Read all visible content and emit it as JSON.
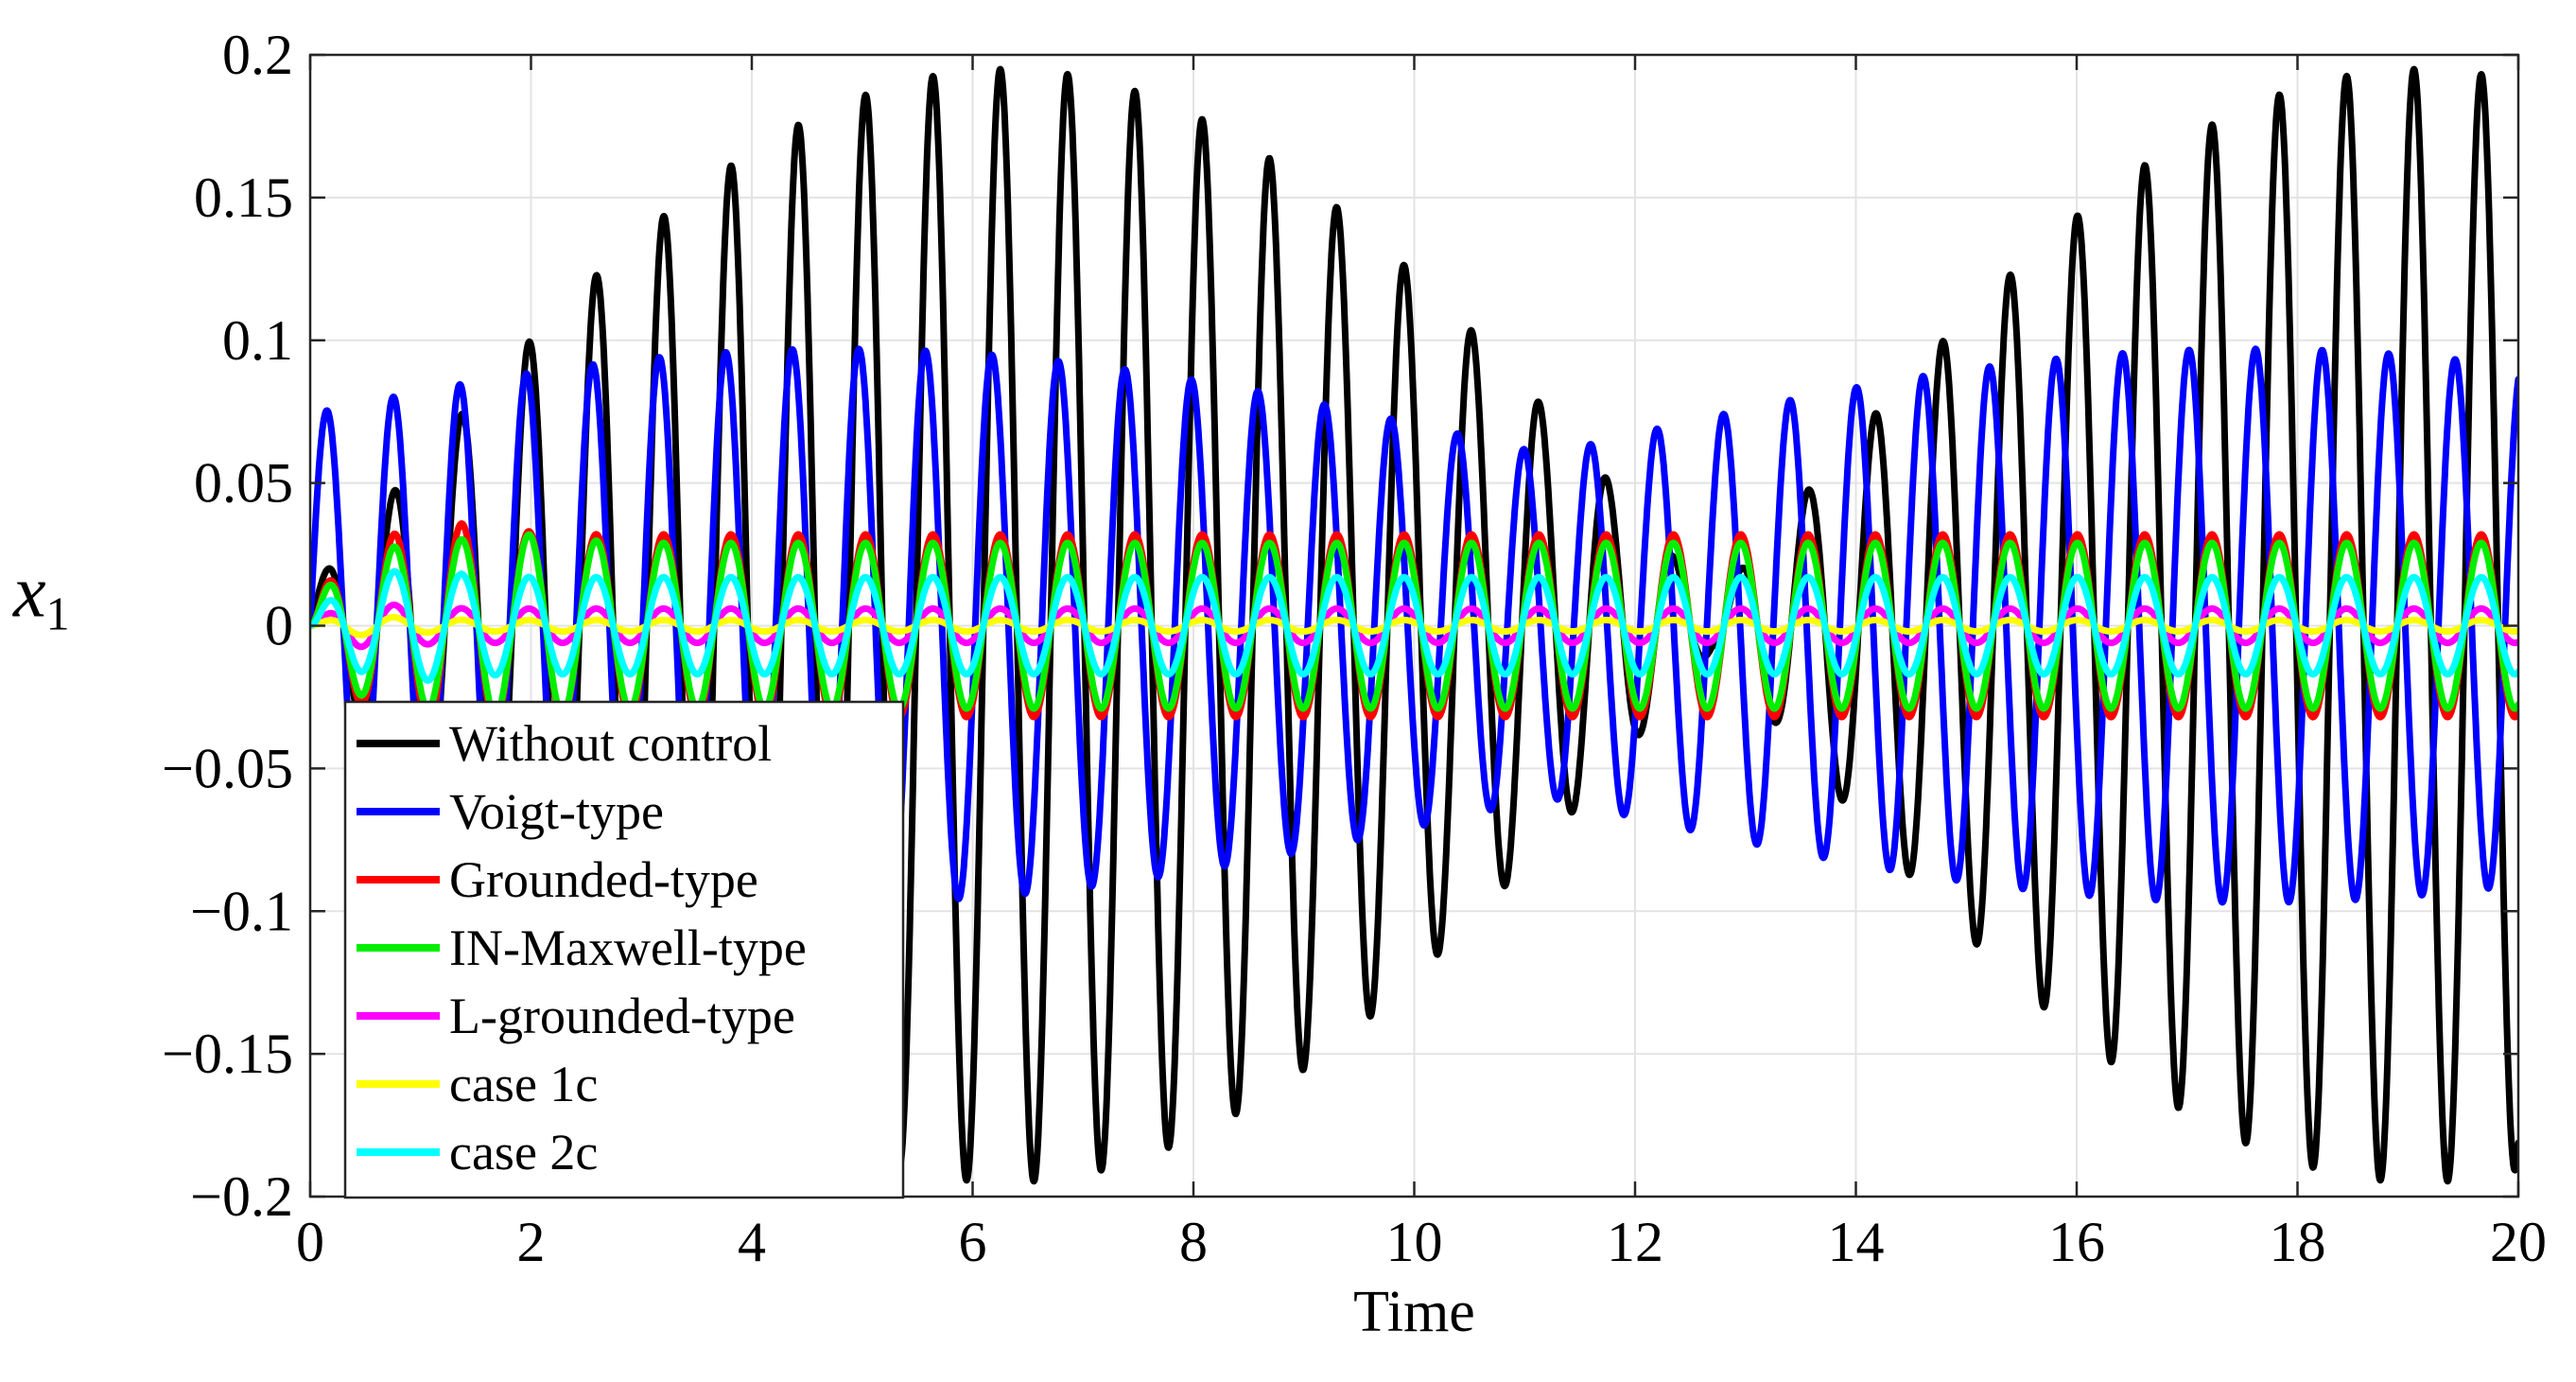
{
  "chart_data": {
    "type": "line",
    "title": "",
    "xlabel": "Time",
    "ylabel_main": "x",
    "ylabel_sub": "1",
    "xlim": [
      0,
      20
    ],
    "ylim": [
      -0.2,
      0.2
    ],
    "xticks": [
      0,
      2,
      4,
      6,
      8,
      10,
      12,
      14,
      16,
      18,
      20
    ],
    "yticks": [
      0.2,
      0.15,
      0.1,
      0.05,
      0,
      -0.05,
      -0.1,
      -0.15,
      -0.2
    ],
    "xtick_labels": [
      "0",
      "2",
      "4",
      "6",
      "8",
      "10",
      "12",
      "14",
      "16",
      "18",
      "20"
    ],
    "ytick_labels": [
      "0.2",
      "0.15",
      "0.1",
      "0.05",
      "0",
      "−0.05",
      "−0.1",
      "−0.15",
      "−0.2"
    ],
    "grid": true,
    "legend_position": "bottom-left",
    "series": [
      {
        "name": "Without control",
        "color": "#000000",
        "model": "beating",
        "amplitude_peak": 0.195,
        "carrier_frequency": 1.64,
        "beat_period": 12.8,
        "beat_peak_time": 6.3,
        "amplitude_floor": 0.008,
        "envelope_power": 1.0
      },
      {
        "name": "Voigt-type",
        "color": "#0000ff",
        "model": "beating",
        "amplitude_peak": 0.097,
        "carrier_frequency": 1.66,
        "beat_period": 12.8,
        "beat_peak_time": 4.8,
        "amplitude_floor": 0.06,
        "envelope_power": 1.0
      },
      {
        "name": "Grounded-type",
        "color": "#ff0000",
        "model": "steady",
        "amplitude": 0.032,
        "frequency": 1.64,
        "transient_peak": 0.036,
        "transient_time": 1.3
      },
      {
        "name": "IN-Maxwell-type",
        "color": "#00ee00",
        "model": "steady",
        "amplitude": 0.029,
        "frequency": 1.64,
        "transient_peak": 0.032,
        "transient_time": 1.9
      },
      {
        "name": "L-grounded-type",
        "color": "#ff00ff",
        "model": "steady",
        "amplitude": 0.006,
        "frequency": 1.64,
        "transient_peak": 0.009,
        "transient_time": 0.3
      },
      {
        "name": "case 1c",
        "color": "#ffff00",
        "model": "steady",
        "amplitude": 0.002,
        "frequency": 1.64,
        "transient_peak": 0.004,
        "transient_time": 0.3
      },
      {
        "name": "case 2c",
        "color": "#00ffff",
        "model": "steady",
        "amplitude": 0.017,
        "frequency": 1.64,
        "transient_peak": 0.02,
        "transient_time": 0.8
      }
    ]
  }
}
